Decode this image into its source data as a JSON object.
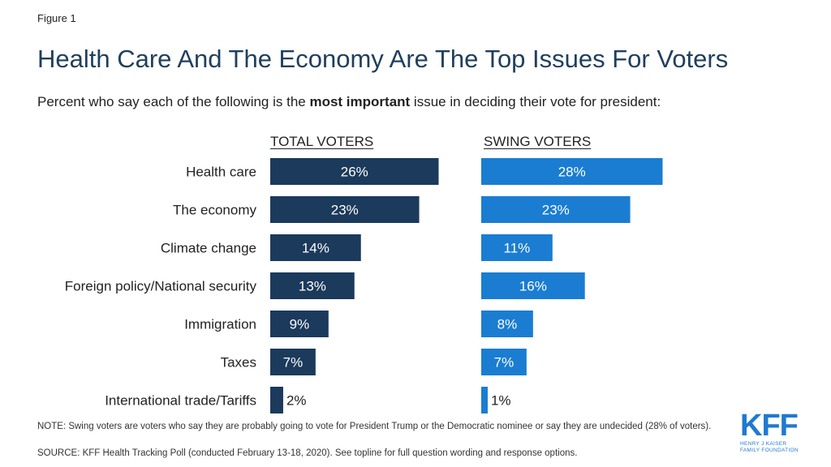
{
  "figure_label": "Figure 1",
  "chart_data": {
    "type": "bar",
    "orientation": "horizontal",
    "title": "Health Care And The Economy Are The Top Issues For Voters",
    "subtitle_pre": "Percent who say each of the following is the ",
    "subtitle_bold": "most important",
    "subtitle_post": " issue in deciding their vote for president:",
    "categories": [
      "Health care",
      "The economy",
      "Climate change",
      "Foreign policy/National security",
      "Immigration",
      "Taxes",
      "International trade/Tariffs"
    ],
    "series": [
      {
        "name": "TOTAL VOTERS",
        "values": [
          26,
          23,
          14,
          13,
          9,
          7,
          2
        ],
        "labels": [
          "26%",
          "23%",
          "14%",
          "13%",
          "9%",
          "7%",
          "2%"
        ],
        "color": "#1b3a5c"
      },
      {
        "name": "SWING VOTERS",
        "values": [
          28,
          23,
          11,
          16,
          8,
          7,
          1
        ],
        "labels": [
          "28%",
          "23%",
          "11%",
          "16%",
          "8%",
          "7%",
          "1%"
        ],
        "color": "#1a7dd1"
      }
    ],
    "xlim": [
      0,
      30
    ],
    "grid": false,
    "legend": "column headers above panels"
  },
  "note": "NOTE: Swing voters are voters who say they are probably going to vote for President Trump  or the Democratic nominee or say they  are undecided (28% of voters).",
  "source": "SOURCE: KFF Health Tracking Poll (conducted February 13-18, 2020). See topline for full question wording and response options.",
  "logo": {
    "mark": "KFF",
    "line1": "HENRY J KAISER",
    "line2": "FAMILY FOUNDATION",
    "color": "#1f7ad0"
  }
}
